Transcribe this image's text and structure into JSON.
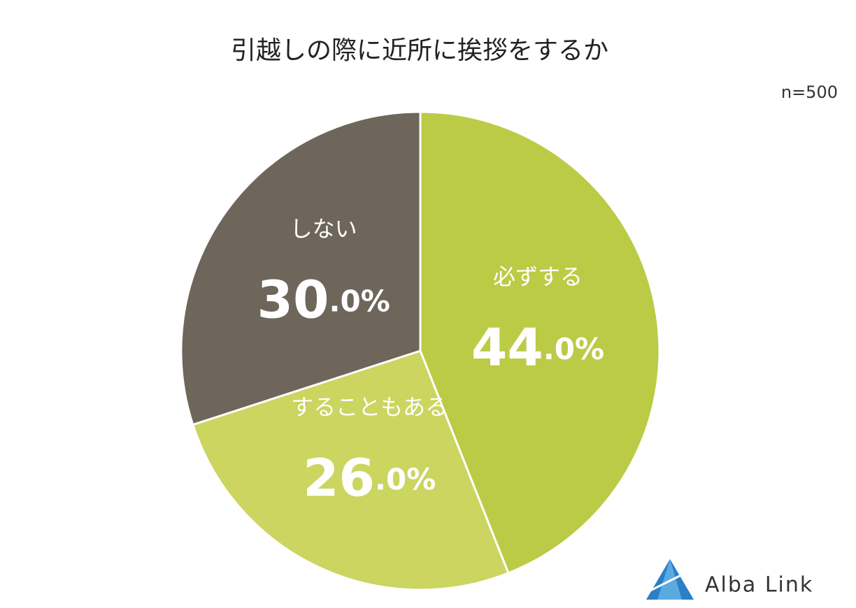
{
  "chart_data": {
    "type": "pie",
    "title": "引越しの際に近所に挨拶をするか",
    "subtitle": "n=500",
    "categories": [
      "必ずする",
      "することもある",
      "しない"
    ],
    "values": [
      44,
      26,
      30
    ],
    "value_labels": [
      "44.0%",
      "26.0%",
      "30.0%"
    ],
    "colors": [
      "#bccb45",
      "#cbd560",
      "#6e665b"
    ]
  },
  "logo": "Alba Link"
}
